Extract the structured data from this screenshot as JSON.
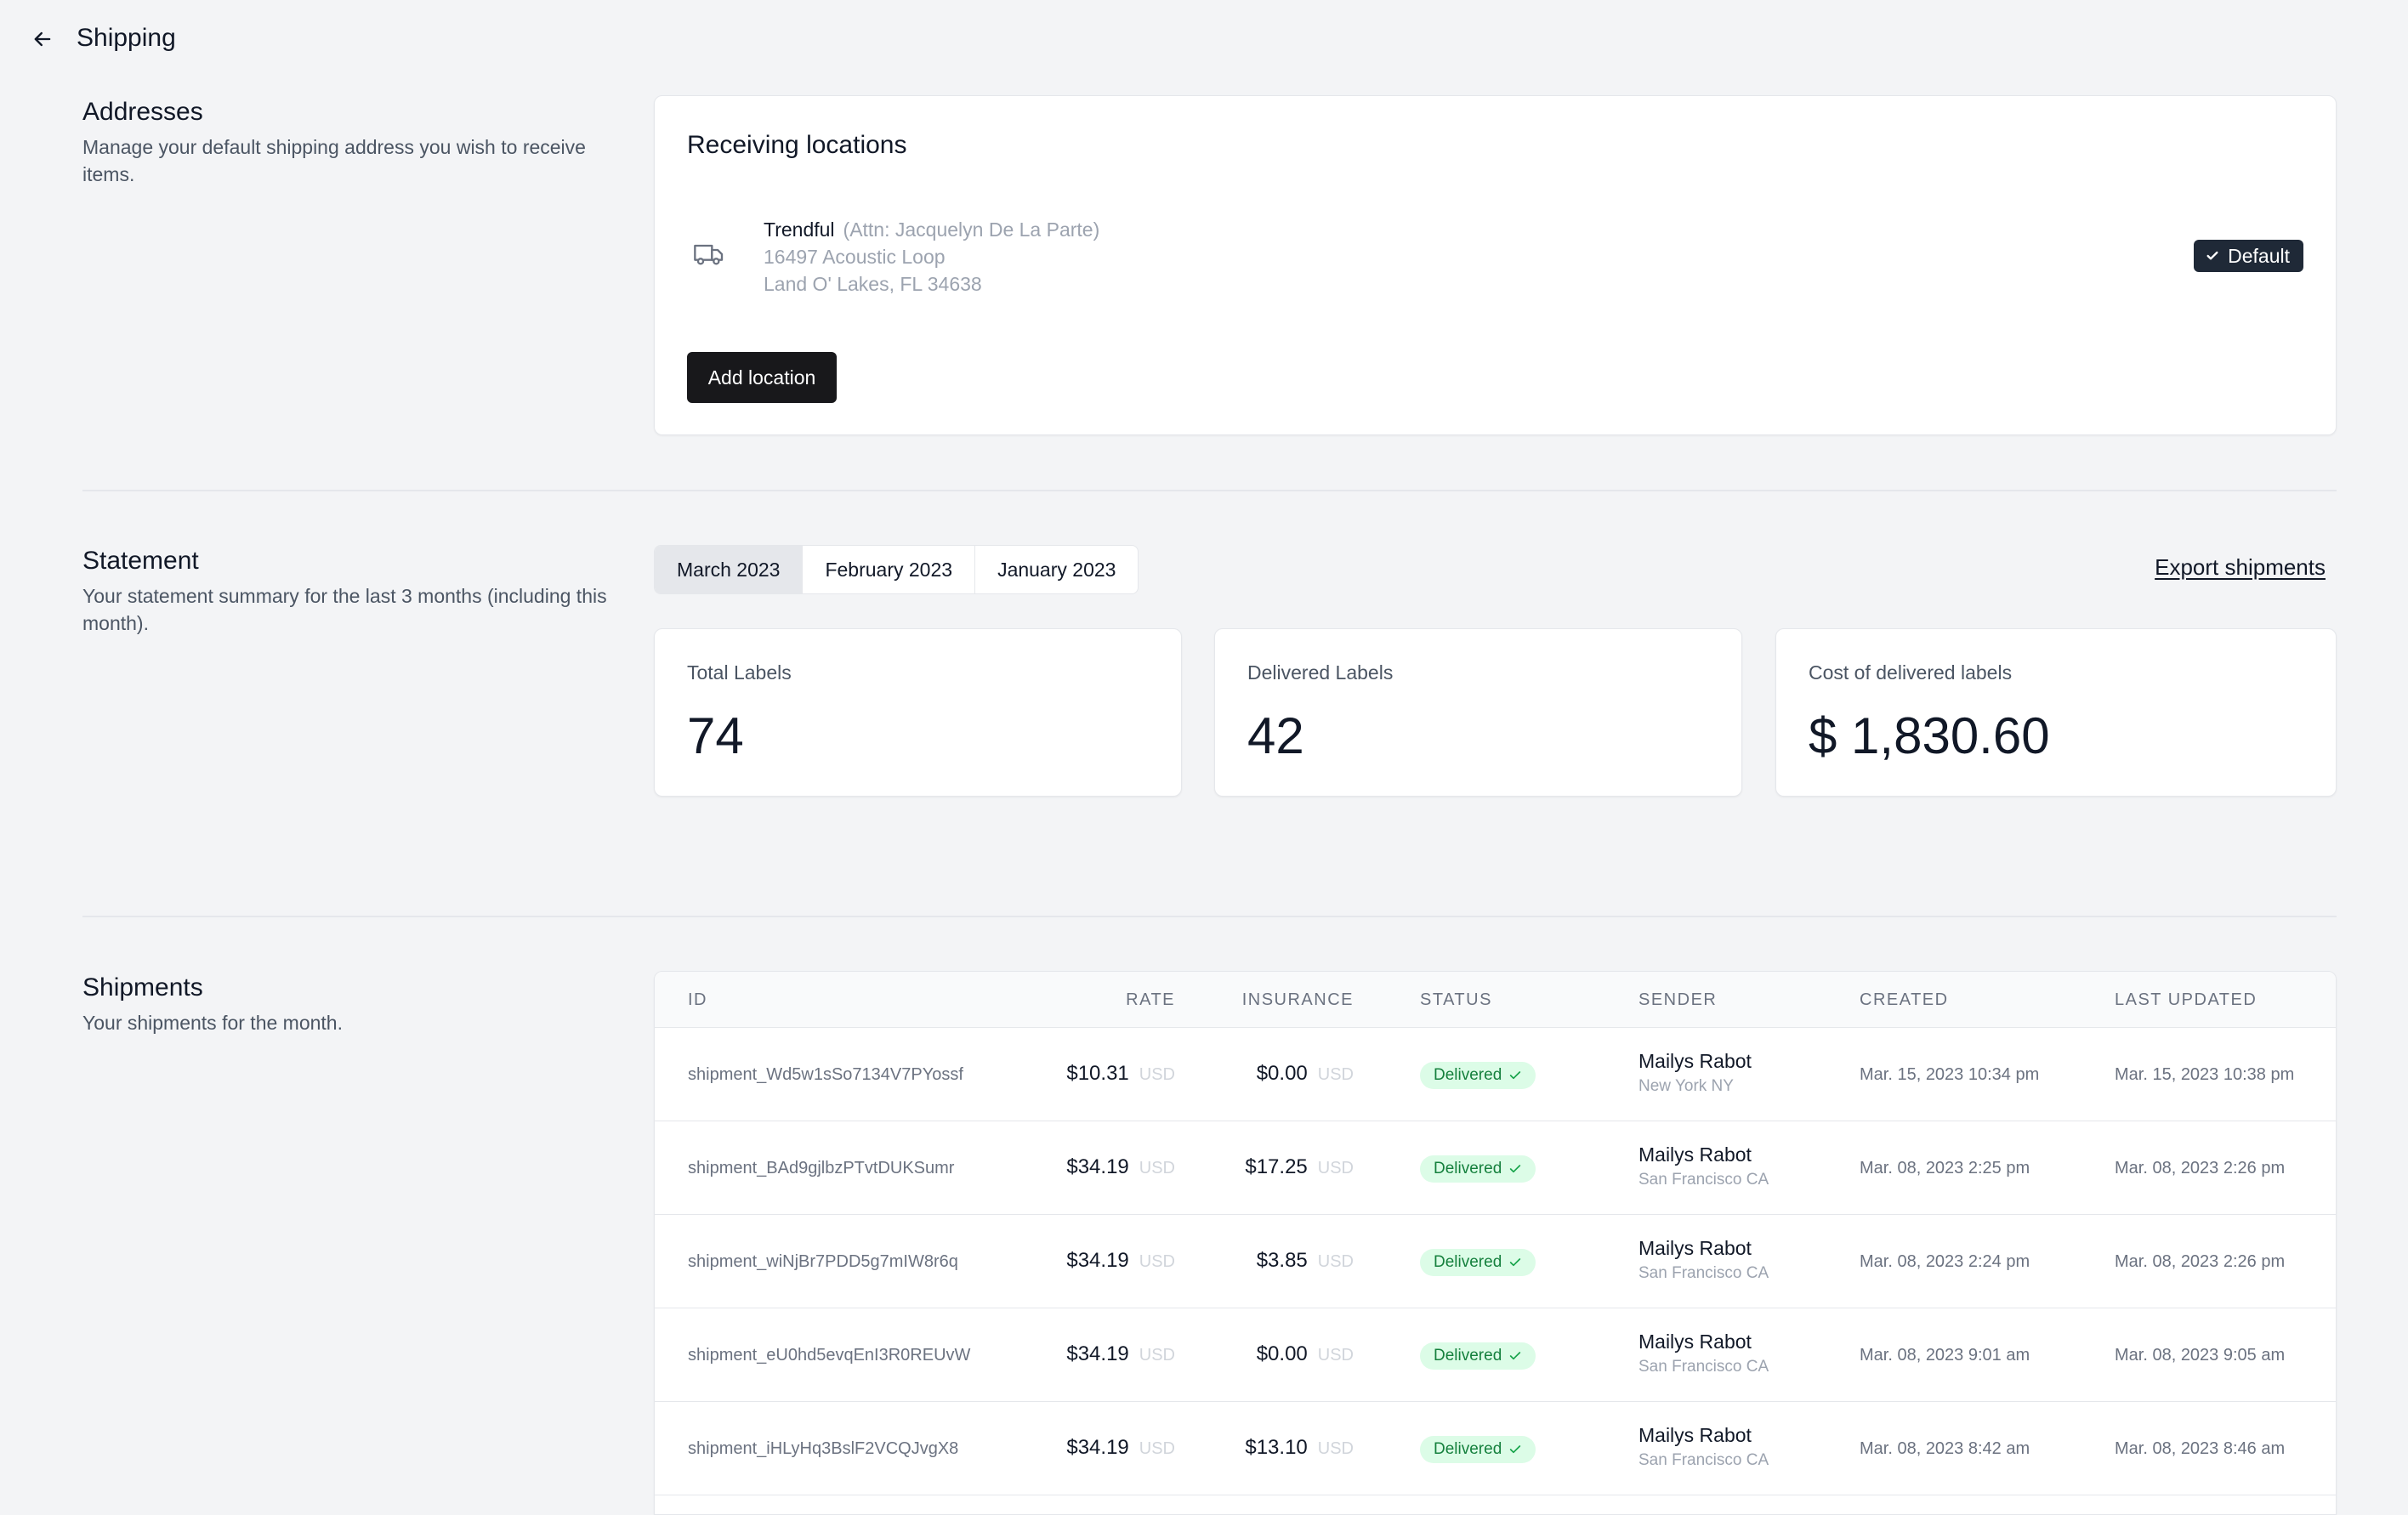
{
  "header": {
    "title": "Shipping"
  },
  "addresses": {
    "title": "Addresses",
    "description": "Manage your default shipping address you wish to receive items.",
    "card_title": "Receiving locations",
    "location": {
      "name": "Trendful",
      "attn": "(Attn: Jacquelyn De La Parte)",
      "line1": "16497 Acoustic Loop",
      "line2": "Land O' Lakes, FL 34638",
      "badge": "Default"
    },
    "add_button": "Add location"
  },
  "statement": {
    "title": "Statement",
    "description": "Your statement summary for the last 3 months (including this month).",
    "tabs": [
      "March 2023",
      "February 2023",
      "January 2023"
    ],
    "active_tab": "March 2023",
    "export_label": "Export shipments",
    "stats": [
      {
        "label": "Total Labels",
        "value": "74"
      },
      {
        "label": "Delivered Labels",
        "value": "42"
      },
      {
        "label": "Cost of delivered labels",
        "value": "$ 1,830.60"
      }
    ]
  },
  "shipments": {
    "title": "Shipments",
    "description": "Your shipments for the month.",
    "columns": [
      "ID",
      "RATE",
      "INSURANCE",
      "STATUS",
      "SENDER",
      "CREATED",
      "LAST UPDATED"
    ],
    "rows": [
      {
        "id": "shipment_Wd5w1sSo7134V7PYossf",
        "rate": "$10.31",
        "rate_cur": "USD",
        "insurance": "$0.00",
        "ins_cur": "USD",
        "status": "Delivered",
        "sender": "Mailys Rabot",
        "sender_loc": "New York NY",
        "created": "Mar. 15, 2023 10:34 pm",
        "updated": "Mar. 15, 2023 10:38 pm"
      },
      {
        "id": "shipment_BAd9gjlbzPTvtDUKSumr",
        "rate": "$34.19",
        "rate_cur": "USD",
        "insurance": "$17.25",
        "ins_cur": "USD",
        "status": "Delivered",
        "sender": "Mailys Rabot",
        "sender_loc": "San Francisco CA",
        "created": "Mar. 08, 2023 2:25 pm",
        "updated": "Mar. 08, 2023 2:26 pm"
      },
      {
        "id": "shipment_wiNjBr7PDD5g7mIW8r6q",
        "rate": "$34.19",
        "rate_cur": "USD",
        "insurance": "$3.85",
        "ins_cur": "USD",
        "status": "Delivered",
        "sender": "Mailys Rabot",
        "sender_loc": "San Francisco CA",
        "created": "Mar. 08, 2023 2:24 pm",
        "updated": "Mar. 08, 2023 2:26 pm"
      },
      {
        "id": "shipment_eU0hd5evqEnI3R0REUvW",
        "rate": "$34.19",
        "rate_cur": "USD",
        "insurance": "$0.00",
        "ins_cur": "USD",
        "status": "Delivered",
        "sender": "Mailys Rabot",
        "sender_loc": "San Francisco CA",
        "created": "Mar. 08, 2023 9:01 am",
        "updated": "Mar. 08, 2023 9:05 am"
      },
      {
        "id": "shipment_iHLyHq3BslF2VCQJvgX8",
        "rate": "$34.19",
        "rate_cur": "USD",
        "insurance": "$13.10",
        "ins_cur": "USD",
        "status": "Delivered",
        "sender": "Mailys Rabot",
        "sender_loc": "San Francisco CA",
        "created": "Mar. 08, 2023 8:42 am",
        "updated": "Mar. 08, 2023 8:46 am"
      }
    ]
  }
}
